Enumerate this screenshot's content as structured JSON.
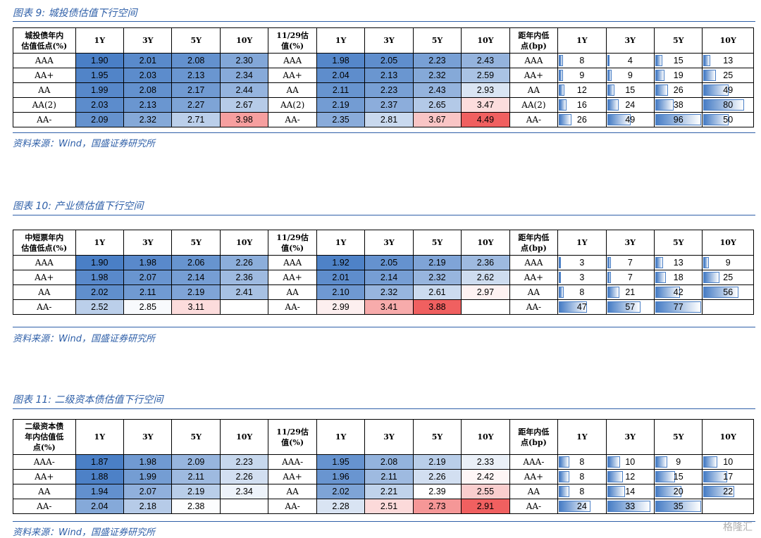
{
  "figures": [
    {
      "title": "图表 9:  城投债估值下行空间",
      "source": "资料来源：Wind，国盛证券研究所",
      "header": [
        "城投债年内\n估值低点(%)",
        "1Y",
        "3Y",
        "5Y",
        "10Y",
        "11/29估\n值(%)",
        "1Y",
        "3Y",
        "5Y",
        "10Y",
        "距年内低\n点(bp)",
        "1Y",
        "3Y",
        "5Y",
        "10Y"
      ],
      "rows": [
        {
          "low_label": "AAA",
          "low": [
            "1.90",
            "2.01",
            "2.08",
            "2.30"
          ],
          "cur_label": "AAA",
          "cur": [
            "1.98",
            "2.05",
            "2.23",
            "2.43"
          ],
          "dist_label": "AAA",
          "dist": [
            "8",
            "4",
            "15",
            "13"
          ]
        },
        {
          "low_label": "AA+",
          "low": [
            "1.95",
            "2.03",
            "2.13",
            "2.34"
          ],
          "cur_label": "AA+",
          "cur": [
            "2.04",
            "2.13",
            "2.32",
            "2.59"
          ],
          "dist_label": "AA+",
          "dist": [
            "9",
            "9",
            "19",
            "25"
          ]
        },
        {
          "low_label": "AA",
          "low": [
            "1.99",
            "2.08",
            "2.17",
            "2.44"
          ],
          "cur_label": "AA",
          "cur": [
            "2.11",
            "2.23",
            "2.43",
            "2.93"
          ],
          "dist_label": "AA",
          "dist": [
            "12",
            "15",
            "26",
            "49"
          ]
        },
        {
          "low_label": "AA(2)",
          "low": [
            "2.03",
            "2.13",
            "2.27",
            "2.67"
          ],
          "cur_label": "AA(2)",
          "cur": [
            "2.19",
            "2.37",
            "2.65",
            "3.47"
          ],
          "dist_label": "AA(2)",
          "dist": [
            "16",
            "24",
            "38",
            "80"
          ]
        },
        {
          "low_label": "AA-",
          "low": [
            "2.09",
            "2.32",
            "2.71",
            "3.98"
          ],
          "cur_label": "AA-",
          "cur": [
            "2.35",
            "2.81",
            "3.67",
            "4.49"
          ],
          "dist_label": "AA-",
          "dist": [
            "26",
            "49",
            "96",
            "50"
          ]
        }
      ]
    },
    {
      "title": "图表 10:  产业债估值下行空间",
      "source": "资料来源：Wind，国盛证券研究所",
      "header": [
        "中短票年内\n估值低点(%)",
        "1Y",
        "3Y",
        "5Y",
        "10Y",
        "11/29估\n值(%)",
        "1Y",
        "3Y",
        "5Y",
        "10Y",
        "距年内低\n点(bp)",
        "1Y",
        "3Y",
        "5Y",
        "10Y"
      ],
      "rows": [
        {
          "low_label": "AAA",
          "low": [
            "1.90",
            "1.98",
            "2.06",
            "2.26"
          ],
          "cur_label": "AAA",
          "cur": [
            "1.92",
            "2.05",
            "2.19",
            "2.36"
          ],
          "dist_label": "AAA",
          "dist": [
            "3",
            "7",
            "13",
            "9"
          ]
        },
        {
          "low_label": "AA+",
          "low": [
            "1.98",
            "2.07",
            "2.14",
            "2.36"
          ],
          "cur_label": "AA+",
          "cur": [
            "2.01",
            "2.14",
            "2.32",
            "2.62"
          ],
          "dist_label": "AA+",
          "dist": [
            "3",
            "7",
            "18",
            "25"
          ]
        },
        {
          "low_label": "AA",
          "low": [
            "2.02",
            "2.11",
            "2.19",
            "2.41"
          ],
          "cur_label": "AA",
          "cur": [
            "2.10",
            "2.32",
            "2.61",
            "2.97"
          ],
          "dist_label": "AA",
          "dist": [
            "8",
            "21",
            "42",
            "56"
          ]
        },
        {
          "low_label": "AA-",
          "low": [
            "2.52",
            "2.85",
            "3.11",
            ""
          ],
          "cur_label": "AA-",
          "cur": [
            "2.99",
            "3.41",
            "3.88",
            ""
          ],
          "dist_label": "AA-",
          "dist": [
            "47",
            "57",
            "77",
            ""
          ]
        }
      ]
    },
    {
      "title": "图表 11:  二级资本债估值下行空间",
      "source": "资料来源：Wind，国盛证券研究所",
      "header": [
        "二级资本债\n年内估值低\n点(%)",
        "1Y",
        "3Y",
        "5Y",
        "10Y",
        "11/29估\n值(%)",
        "1Y",
        "3Y",
        "5Y",
        "10Y",
        "距年内低\n点(bp)",
        "1Y",
        "3Y",
        "5Y",
        "10Y"
      ],
      "rows": [
        {
          "low_label": "AAA-",
          "low": [
            "1.87",
            "1.98",
            "2.09",
            "2.23"
          ],
          "cur_label": "AAA-",
          "cur": [
            "1.95",
            "2.08",
            "2.19",
            "2.33"
          ],
          "dist_label": "AAA-",
          "dist": [
            "8",
            "10",
            "9",
            "10"
          ]
        },
        {
          "low_label": "AA+",
          "low": [
            "1.88",
            "1.99",
            "2.11",
            "2.26"
          ],
          "cur_label": "AA+",
          "cur": [
            "1.96",
            "2.11",
            "2.26",
            "2.42"
          ],
          "dist_label": "AA+",
          "dist": [
            "8",
            "12",
            "15",
            "17"
          ]
        },
        {
          "low_label": "AA",
          "low": [
            "1.94",
            "2.07",
            "2.19",
            "2.34"
          ],
          "cur_label": "AA",
          "cur": [
            "2.02",
            "2.21",
            "2.39",
            "2.55"
          ],
          "dist_label": "AA",
          "dist": [
            "8",
            "14",
            "20",
            "22"
          ]
        },
        {
          "low_label": "AA-",
          "low": [
            "2.04",
            "2.18",
            "2.38",
            ""
          ],
          "cur_label": "AA-",
          "cur": [
            "2.28",
            "2.51",
            "2.73",
            "2.91"
          ],
          "dist_label": "AA-",
          "dist": [
            "24",
            "33",
            "35",
            ""
          ]
        }
      ]
    }
  ],
  "watermark": "格隆汇",
  "colors": {
    "accent": "#2e5fa8",
    "low": "#4a7fc6",
    "high": "#f07070"
  }
}
